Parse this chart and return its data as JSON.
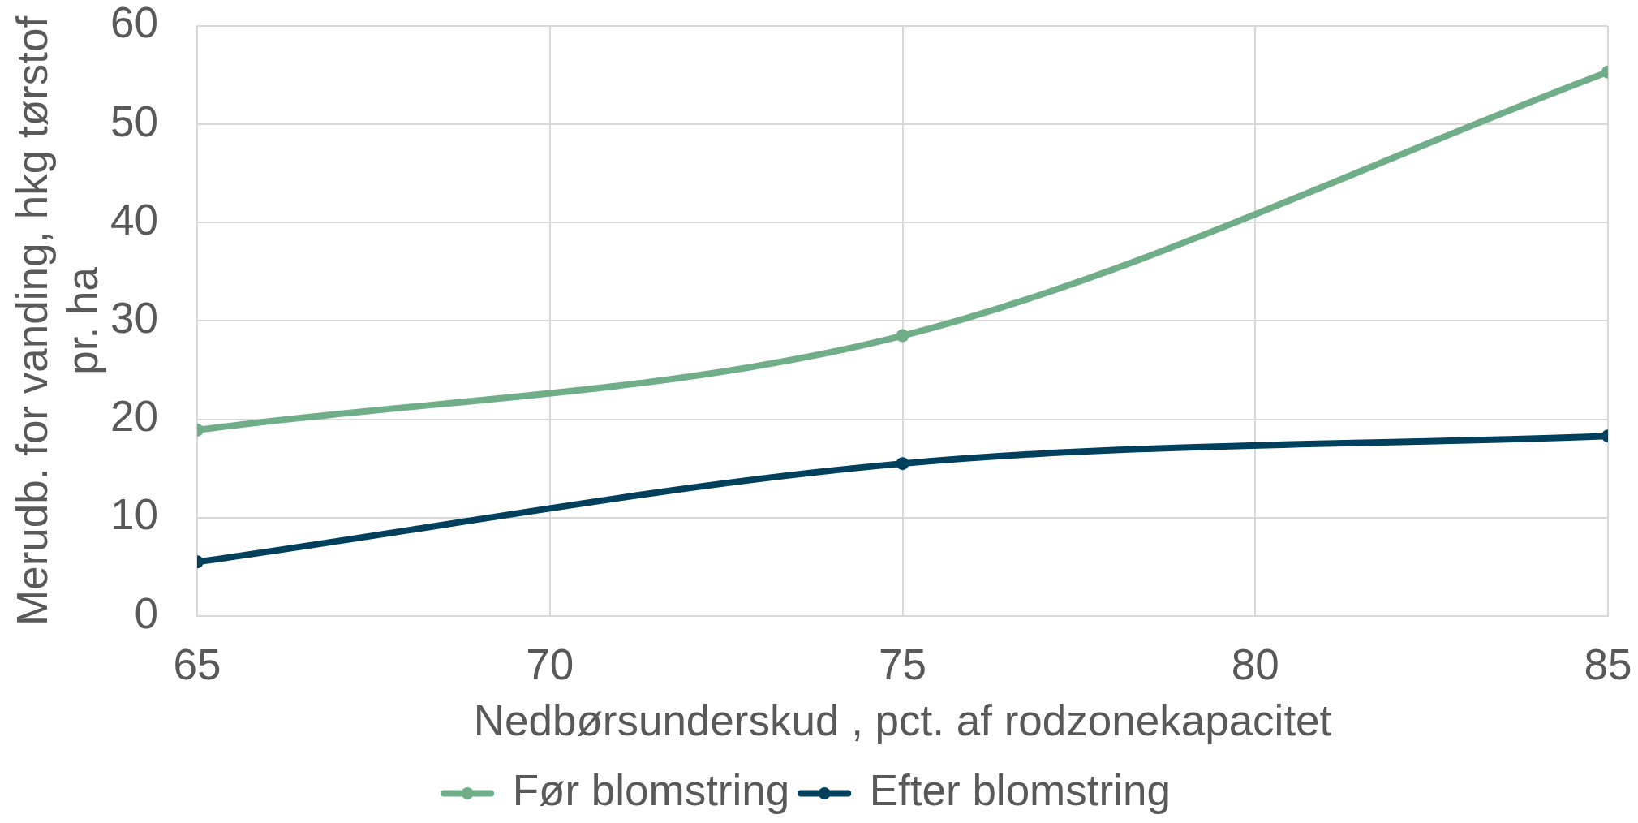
{
  "chart_data": {
    "type": "line",
    "xlabel": "Nedbørsunderskud , pct. af rodzonekapacitet",
    "ylabel": "Merudb. for vanding, hkg tørstof pr. ha",
    "x": [
      65,
      75,
      85
    ],
    "series": [
      {
        "name": "Før blomstring",
        "color": "#70ae89",
        "values": [
          18.9,
          28.5,
          55.3
        ]
      },
      {
        "name": "Efter blomstring",
        "color": "#00405c",
        "values": [
          5.5,
          15.5,
          18.3
        ]
      }
    ],
    "xlim": [
      65,
      85
    ],
    "xticks": [
      65,
      70,
      75,
      80,
      85
    ],
    "ylim": [
      0,
      60
    ],
    "yticks": [
      0,
      10,
      20,
      30,
      40,
      50,
      60
    ],
    "grid": true,
    "legend": "bottom",
    "marker": "circle",
    "line_style": "solid"
  }
}
